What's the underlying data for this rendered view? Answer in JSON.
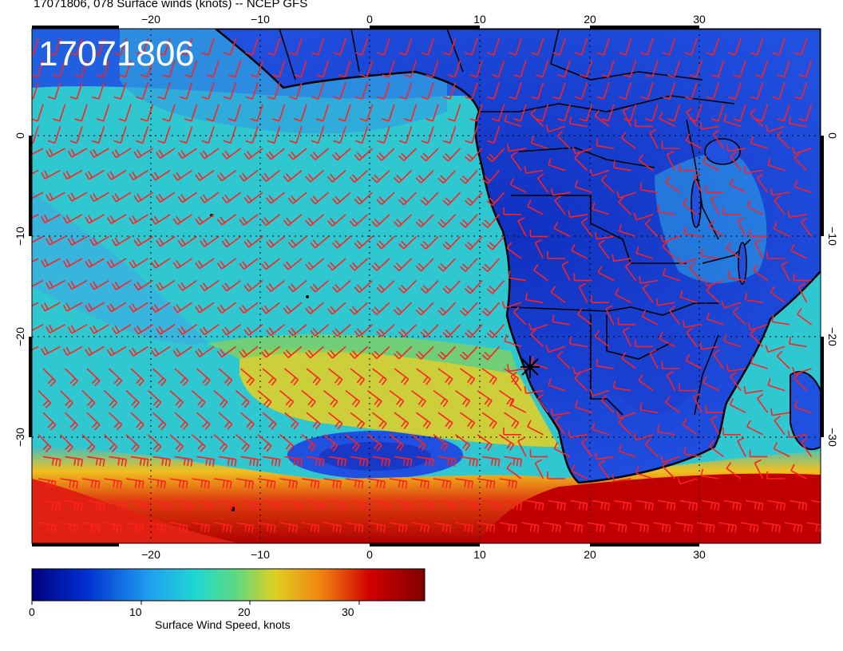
{
  "title": "17071806, 078 Surface winds (knots) -- NCEP GFS",
  "timestamp": "17071806",
  "map": {
    "lon_range": [
      -31,
      41
    ],
    "lat_range": [
      -40,
      10
    ],
    "lon_ticks": [
      "−20",
      "−10",
      "0",
      "10",
      "20",
      "30"
    ],
    "lat_ticks": [
      "0",
      "−10",
      "−20",
      "−30"
    ],
    "marker": {
      "lon": 14.5,
      "lat": -23,
      "symbol": "star"
    }
  },
  "colorbar": {
    "title": "Surface Wind Speed, knots",
    "labels": [
      "0",
      "10",
      "20",
      "30"
    ],
    "range": [
      0,
      36
    ],
    "stops": [
      "#000080",
      "#0040d0",
      "#00c8e0",
      "#40d890",
      "#e0d020",
      "#f08010",
      "#c00000",
      "#800000"
    ]
  },
  "colors": {
    "barb": "#ff2020",
    "coastline": "#000000",
    "background": "#ffffff"
  }
}
